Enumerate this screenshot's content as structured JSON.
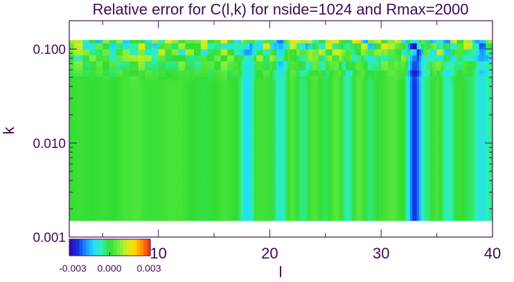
{
  "chart_data": {
    "type": "heatmap",
    "title": "Relative error for C(l,k) for nside=1024 and Rmax=2000",
    "xlabel": "l",
    "ylabel": "k",
    "xlim": [
      2,
      40
    ],
    "ylim": [
      0.001,
      0.2
    ],
    "y_scale": "log",
    "data_k_range": [
      0.0015,
      0.125
    ],
    "x_ticks": [
      10,
      20,
      30,
      40
    ],
    "x_tick_labels": [
      "10",
      "20",
      "30",
      "40"
    ],
    "y_ticks": [
      0.001,
      0.01,
      0.1
    ],
    "y_tick_labels": [
      "0.001",
      "0.010",
      "0.100"
    ],
    "colorbar": {
      "min": -0.003,
      "max": 0.003,
      "tick_labels": [
        "-0.003",
        "0.000",
        "0.003"
      ],
      "colors": [
        "#3b00a8",
        "#1030e0",
        "#1a8cff",
        "#22ddff",
        "#30f0b0",
        "#33dd33",
        "#66ee44",
        "#ccee22",
        "#ffdd00",
        "#ff8800",
        "#ff2222"
      ]
    },
    "column_profile": {
      "l": [
        2,
        3,
        4,
        5,
        6,
        7,
        8,
        9,
        10,
        11,
        12,
        13,
        14,
        15,
        16,
        17,
        18,
        19,
        20,
        21,
        22,
        23,
        24,
        25,
        26,
        27,
        28,
        29,
        30,
        31,
        32,
        33,
        34,
        35,
        36,
        37,
        38,
        39,
        40
      ],
      "relative_error": [
        0.0,
        0.0001,
        0.0,
        0.0001,
        0.0,
        0.0002,
        0.0003,
        0.0001,
        0.0001,
        0.0002,
        0.0002,
        0.0,
        -0.0001,
        0.0,
        0.0002,
        0.0,
        -0.0012,
        0.0002,
        0.0001,
        -0.0008,
        0.0003,
        -0.0004,
        0.0003,
        -0.0002,
        0.0004,
        -0.0006,
        0.0004,
        -0.0003,
        0.0001,
        0.0004,
        0.0,
        -0.0024,
        -0.0004,
        0.0002,
        -0.0007,
        0.0001,
        -0.0002,
        -0.001,
        -0.0004
      ]
    }
  }
}
